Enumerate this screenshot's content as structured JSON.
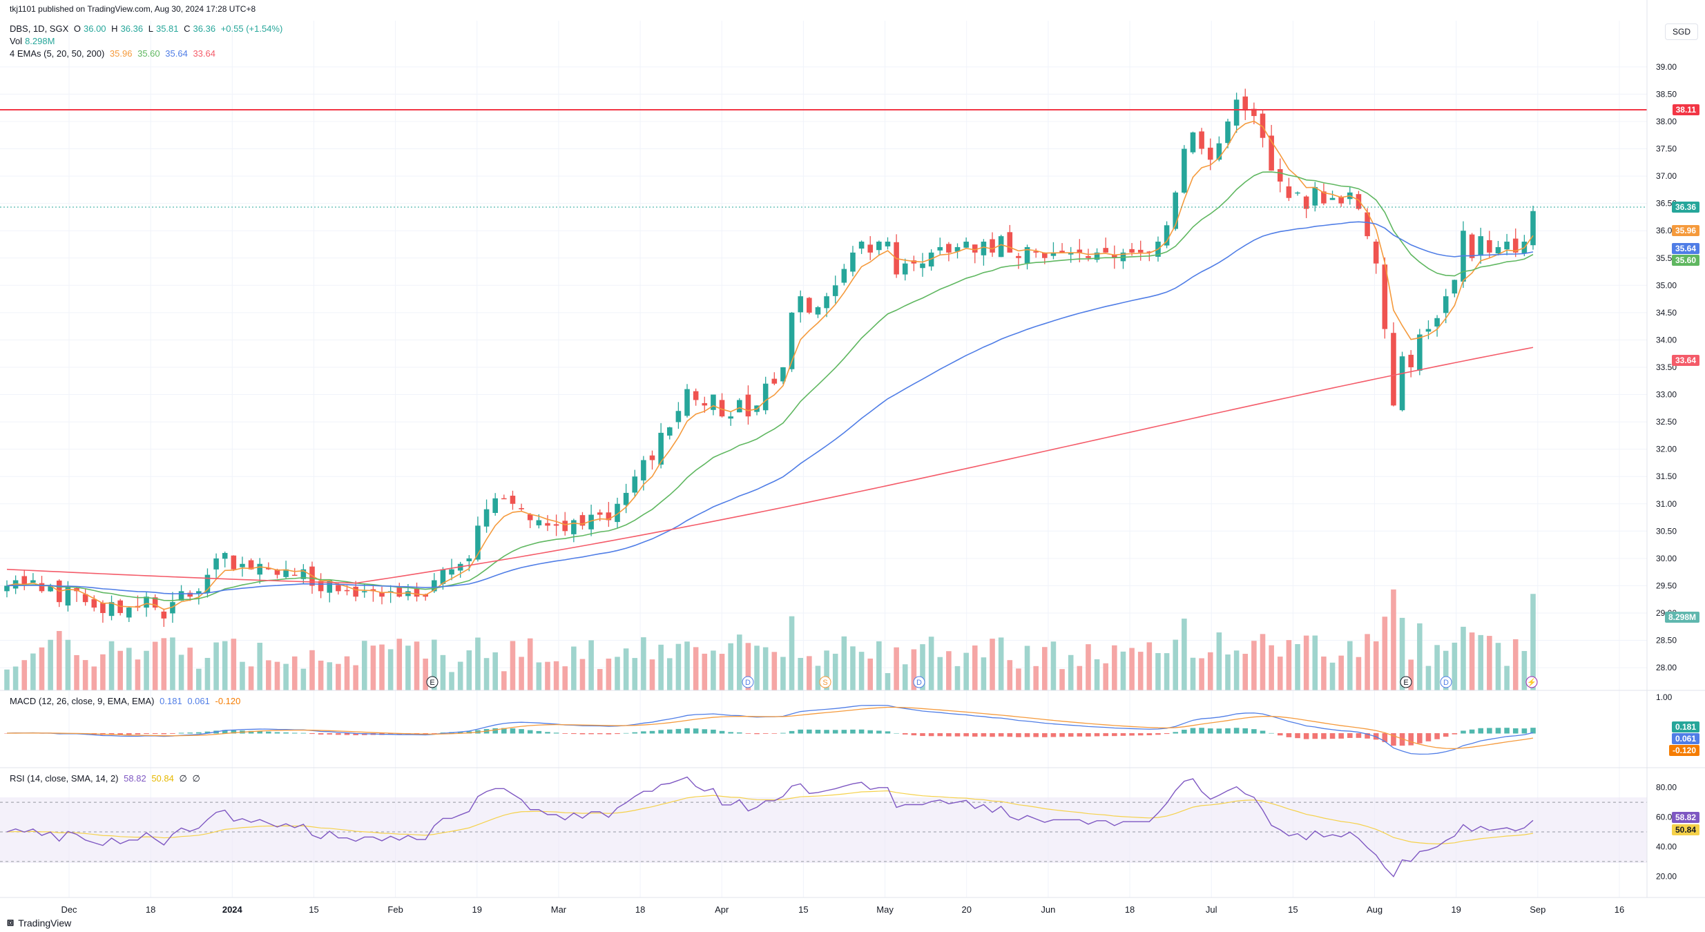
{
  "publisher": "tkj1101 published on TradingView.com, Aug 30, 2024 17:28 UTC+8",
  "symbol_line": {
    "symbol": "DBS, 1D, SGX",
    "o_label": "O",
    "o": "36.00",
    "h_label": "H",
    "h": "36.36",
    "l_label": "L",
    "l": "35.81",
    "c_label": "C",
    "c": "36.36",
    "chg": "+0.55 (+1.54%)"
  },
  "vol_line": {
    "label": "Vol",
    "value": "8.298M"
  },
  "ema_line": {
    "label": "4 EMAs (5, 20, 50, 200)",
    "v5": "35.96",
    "v20": "35.60",
    "v50": "35.64",
    "v200": "33.64"
  },
  "macd_line": {
    "label": "MACD (12, 26, close, 9, EMA, EMA)",
    "v1": "0.181",
    "v2": "0.061",
    "v3": "-0.120"
  },
  "rsi_line": {
    "label": "RSI (14, close, SMA, 14, 2)",
    "v1": "58.82",
    "v2": "50.84",
    "v3": "∅",
    "v4": "∅"
  },
  "currency": "SGD",
  "footer": {
    "brand": "TradingView"
  },
  "colors": {
    "up": "#26a69a",
    "down": "#ef5350",
    "ema5": "#f59a3c",
    "ema20": "#5fb760",
    "ema50": "#4f7de6",
    "ema200": "#f45b69",
    "macd": "#4f7de6",
    "signal": "#f59a3c",
    "rsi": "#7e57c2",
    "rsi_ma": "#f5d14a",
    "resistance": "#f23645"
  },
  "price_tags": {
    "resistance": "38.11",
    "last": "36.36",
    "ema5": "35.96",
    "ema50": "35.64",
    "ema20": "35.60",
    "ema200": "33.64",
    "volume": "8.298M"
  },
  "macd_tags": {
    "macd": "0.181",
    "signal": "0.061",
    "hist": "-0.120"
  },
  "rsi_tags": {
    "rsi": "58.82",
    "ma": "50.84"
  },
  "chart_data": {
    "type": "candlestick",
    "x_labels": [
      "Dec",
      "18",
      "2024",
      "15",
      "Feb",
      "19",
      "Mar",
      "18",
      "Apr",
      "15",
      "May",
      "20",
      "Jun",
      "18",
      "Jul",
      "15",
      "Aug",
      "19",
      "Sep",
      "16"
    ],
    "price_axis": {
      "ticks": [
        "39.00",
        "38.50",
        "38.00",
        "37.50",
        "37.00",
        "36.50",
        "36.00",
        "35.50",
        "35.00",
        "34.50",
        "34.00",
        "33.50",
        "33.00",
        "32.50",
        "32.00",
        "31.50",
        "31.00",
        "30.50",
        "30.00",
        "29.50",
        "29.00",
        "28.50",
        "28.00"
      ],
      "ylim": [
        27.9,
        39.2
      ]
    },
    "macd_axis": {
      "ticks": [
        "1.00"
      ]
    },
    "rsi_axis": {
      "ticks": [
        "80.00",
        "60.00",
        "40.00",
        "20.00"
      ],
      "bands": [
        70,
        50,
        30
      ]
    },
    "resistance": 38.11,
    "closes": [
      29.5,
      29.6,
      29.5,
      29.6,
      29.4,
      29.5,
      29.2,
      29.5,
      29.4,
      29.2,
      29.1,
      29.0,
      29.2,
      29.0,
      29.1,
      29.1,
      29.3,
      29.1,
      28.9,
      29.2,
      29.4,
      29.3,
      29.4,
      29.7,
      30.0,
      30.1,
      29.8,
      29.9,
      29.8,
      29.9,
      29.8,
      29.7,
      29.8,
      29.7,
      29.8,
      29.5,
      29.4,
      29.6,
      29.4,
      29.4,
      29.3,
      29.4,
      29.4,
      29.3,
      29.4,
      29.3,
      29.4,
      29.3,
      29.3,
      29.6,
      29.8,
      29.8,
      29.9,
      30.0,
      30.6,
      30.9,
      31.1,
      31.1,
      31.0,
      30.9,
      30.7,
      30.7,
      30.6,
      30.6,
      30.5,
      30.7,
      30.6,
      30.8,
      30.8,
      30.7,
      31.0,
      31.2,
      31.5,
      31.8,
      31.8,
      32.3,
      32.4,
      32.7,
      33.1,
      32.9,
      32.8,
      33.0,
      32.6,
      32.6,
      32.9,
      32.6,
      32.8,
      33.2,
      33.2,
      33.5,
      34.5,
      34.8,
      34.5,
      34.6,
      34.8,
      35.0,
      35.3,
      35.6,
      35.8,
      35.6,
      35.8,
      35.8,
      35.2,
      35.4,
      35.4,
      35.4,
      35.6,
      35.7,
      35.6,
      35.7,
      35.8,
      35.6,
      35.8,
      35.6,
      35.9,
      35.6,
      35.5,
      35.7,
      35.6,
      35.5,
      35.6,
      35.6,
      35.6,
      35.6,
      35.5,
      35.6,
      35.6,
      35.5,
      35.6,
      35.6,
      35.6,
      35.6,
      35.8,
      36.1,
      36.7,
      37.5,
      37.8,
      37.5,
      37.3,
      37.6,
      38.0,
      38.4,
      38.2,
      38.1,
      37.7,
      37.1,
      36.9,
      36.6,
      36.7,
      36.4,
      36.8,
      36.5,
      36.6,
      36.5,
      36.7,
      36.4,
      35.9,
      35.4,
      34.2,
      32.8,
      33.7,
      33.5,
      34.1,
      34.2,
      34.4,
      34.8,
      35.1,
      36.0,
      35.5,
      35.9,
      35.6,
      35.7,
      35.8,
      35.6,
      35.8,
      36.36
    ]
  }
}
